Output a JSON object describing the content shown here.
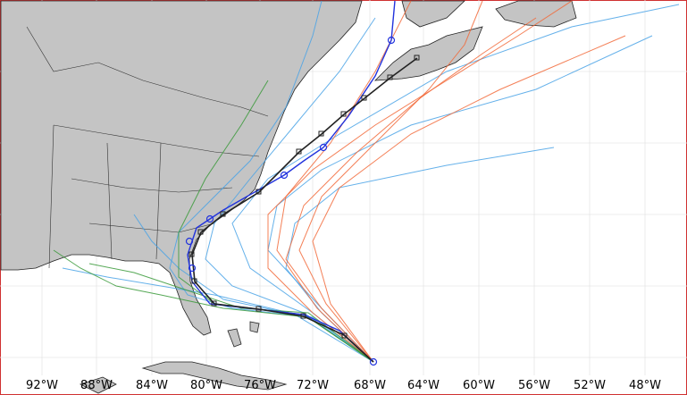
{
  "map": {
    "lon_labels": [
      "92°W",
      "88°W",
      "84°W",
      "80°W",
      "76°W",
      "72°W",
      "68°W",
      "64°W",
      "60°W",
      "56°W",
      "52°W",
      "48°W"
    ]
  }
}
